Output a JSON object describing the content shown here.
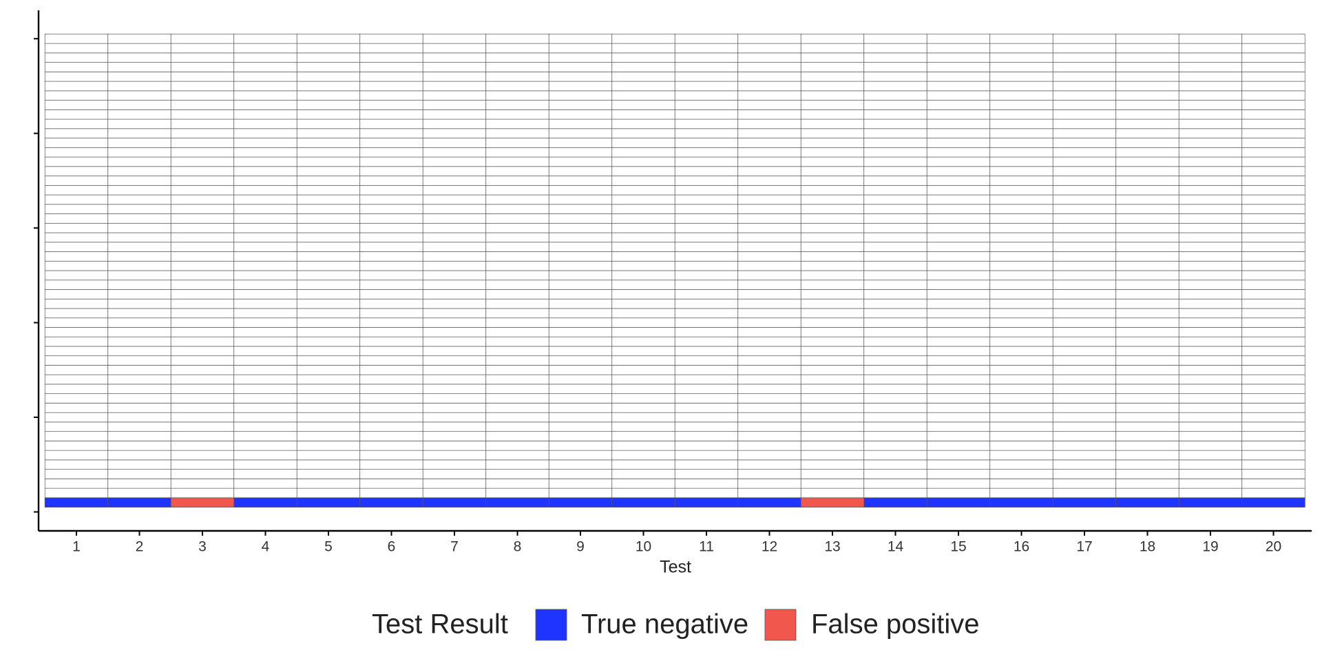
{
  "chart_data": {
    "type": "tile",
    "x_label": "Test",
    "legend_title": "Test Result",
    "categories": [
      1,
      2,
      3,
      4,
      5,
      6,
      7,
      8,
      9,
      10,
      11,
      12,
      13,
      14,
      15,
      16,
      17,
      18,
      19,
      20
    ],
    "tile_rows": 50,
    "series": [
      {
        "name": "True negative",
        "color": "#1f35ff",
        "values": [
          1,
          1,
          null,
          1,
          1,
          1,
          1,
          1,
          1,
          1,
          1,
          1,
          null,
          1,
          1,
          1,
          1,
          1,
          1,
          1
        ]
      },
      {
        "name": "False positive",
        "color": "#f2574d",
        "values": [
          null,
          null,
          1,
          null,
          null,
          null,
          null,
          null,
          null,
          null,
          null,
          null,
          1,
          null,
          null,
          null,
          null,
          null,
          null,
          null
        ]
      }
    ],
    "ylim": [
      -2,
      53
    ],
    "yticks": [
      0,
      10,
      20,
      30,
      40,
      50
    ]
  }
}
